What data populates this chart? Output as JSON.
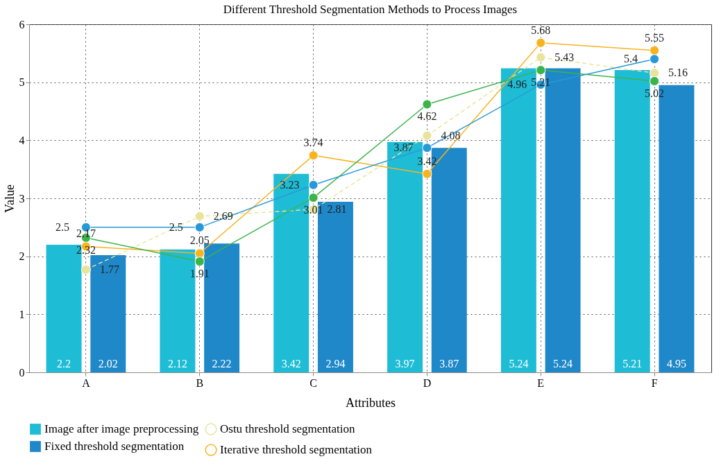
{
  "chart_data": {
    "type": "bar",
    "title": "Different Threshold Segmentation Methods to Process Images",
    "xlabel": "Attributes",
    "ylabel": "Value",
    "categories": [
      "A",
      "B",
      "C",
      "D",
      "E",
      "F"
    ],
    "series": [
      {
        "name": "Image after image preprocessing",
        "type": "bar",
        "color": "#1fbcd6",
        "values": [
          2.2,
          2.12,
          3.42,
          3.97,
          5.24,
          5.21
        ]
      },
      {
        "name": "Fixed threshold segmentation",
        "type": "bar",
        "color": "#1f88c9",
        "values": [
          2.02,
          2.22,
          2.94,
          3.87,
          5.24,
          4.95
        ]
      },
      {
        "name": "Ostu threshold segmentation",
        "type": "line",
        "color": "#e8e49a",
        "line_style": "dashed",
        "values": [
          1.77,
          2.69,
          2.81,
          4.08,
          5.43,
          5.16
        ]
      },
      {
        "name": "Iterative threshold segmentation",
        "type": "line",
        "color": "#f8b31e",
        "line_style": "solid",
        "values": [
          2.17,
          2.05,
          3.74,
          3.42,
          5.68,
          5.55
        ]
      },
      {
        "type": "line",
        "color": "#3cb44a",
        "line_style": "solid",
        "values": [
          2.32,
          1.91,
          3.01,
          4.62,
          5.21,
          5.02
        ]
      },
      {
        "type": "line",
        "color": "#2899d8",
        "line_style": "solid",
        "values": [
          2.5,
          2.5,
          3.23,
          3.87,
          4.96,
          5.4
        ]
      }
    ],
    "ylim": [
      0,
      6
    ],
    "yticks": [
      0,
      1,
      2,
      3,
      4,
      5,
      6
    ],
    "grid": true,
    "legend": "bottom",
    "marker": "circle",
    "data_labels": true
  }
}
